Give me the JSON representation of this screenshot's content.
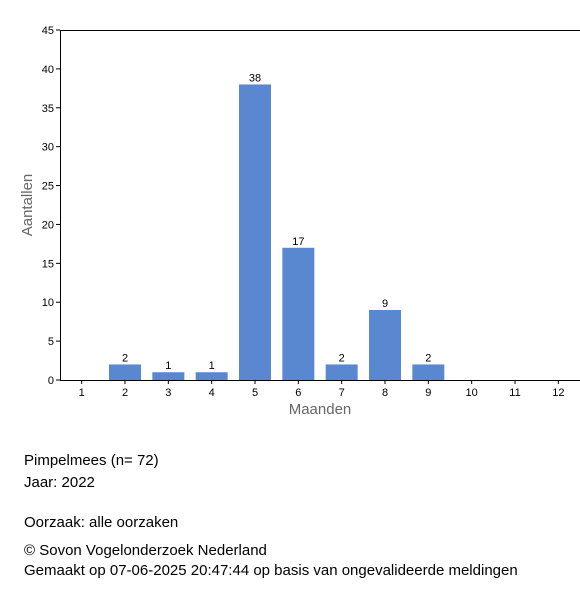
{
  "chart_data": {
    "type": "bar",
    "xlabel": "Maanden",
    "ylabel": "Aantallen",
    "categories": [
      "1",
      "2",
      "3",
      "4",
      "5",
      "6",
      "7",
      "8",
      "9",
      "10",
      "11",
      "12"
    ],
    "values": [
      null,
      2,
      1,
      1,
      38,
      17,
      2,
      9,
      2,
      null,
      null,
      null
    ],
    "color": "#5a88d0",
    "ylim": [
      0,
      45
    ],
    "yticks": [
      0,
      5,
      10,
      15,
      20,
      25,
      30,
      35,
      40,
      45
    ],
    "grid": false
  },
  "footer": {
    "species": "Pimpelmees  (n= 72)",
    "year": "Jaar: 2022",
    "cause": "Oorzaak: alle oorzaken",
    "copyright": "© Sovon Vogelonderzoek Nederland",
    "made": "Gemaakt op 07-06-2025 20:47:44 op basis van ongevalideerde meldingen"
  }
}
